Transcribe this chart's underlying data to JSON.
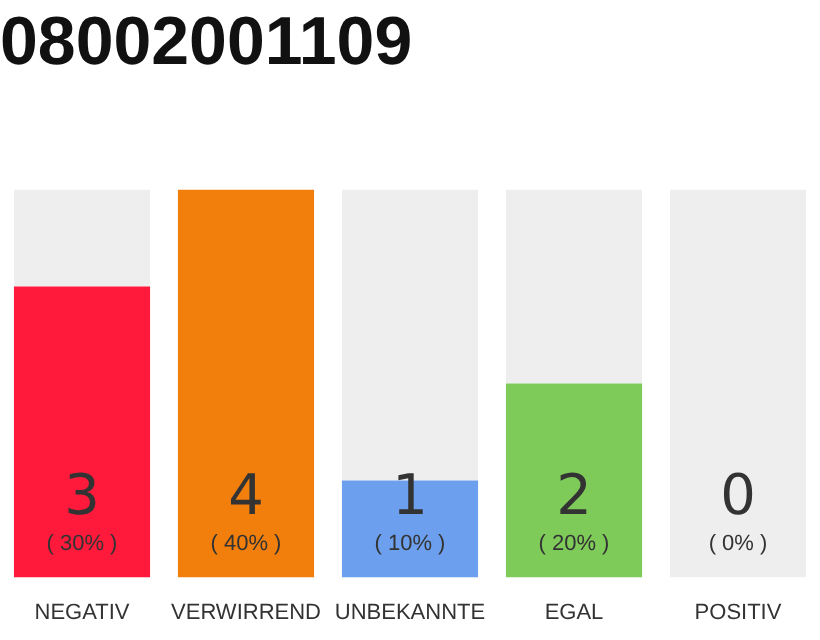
{
  "chart_data": {
    "type": "bar",
    "title": "08002001109",
    "categories": [
      "NEGATIV",
      "VERWIRREND",
      "UNBEKANNTE",
      "EGAL",
      "POSITIV"
    ],
    "stacked": true,
    "series": [
      {
        "colors": [
          "#ff1a3c",
          "#f27f0c",
          "#6ca0ee",
          "#7ecb5a",
          "#b0b0b0"
        ],
        "values": [
          30,
          40,
          10,
          20,
          0
        ],
        "value_labels": [
          "( 30% )",
          "( 40% )",
          "( 10% )",
          "( 20% )",
          null
        ]
      },
      {
        "color": "#eeeeee",
        "values": [
          10,
          0,
          30,
          20,
          40
        ]
      }
    ],
    "annotations": [
      "3",
      "4",
      "1",
      "2",
      "0",
      {
        "text": "( 0% )",
        "x": "POSITIV",
        "y": 0
      }
    ],
    "grid": false,
    "legend": false,
    "tick_labels": "x"
  }
}
